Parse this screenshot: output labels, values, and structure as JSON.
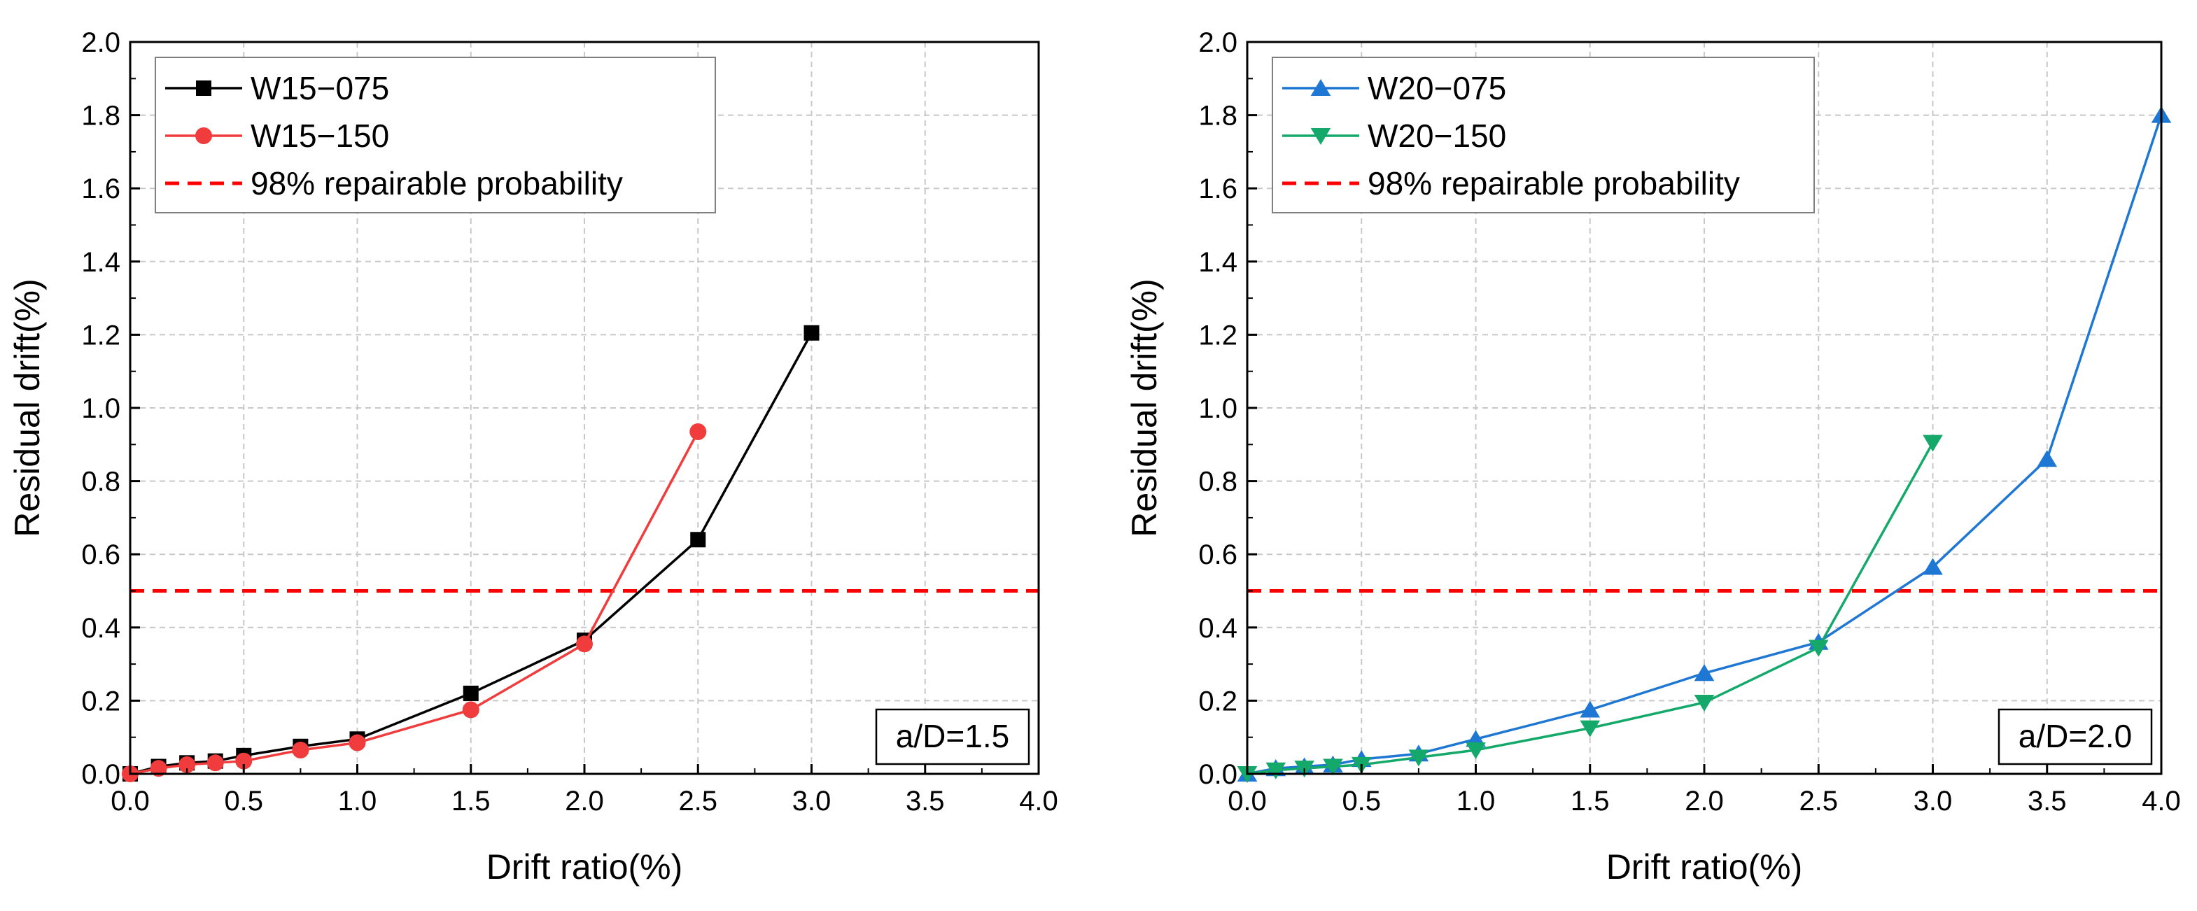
{
  "chart_data": [
    {
      "type": "line",
      "xlabel": "Drift ratio(%)",
      "ylabel": "Residual drift(%)",
      "xlim": [
        0,
        4
      ],
      "ylim": [
        0,
        2
      ],
      "xticks": [
        "0.0",
        "0.5",
        "1.0",
        "1.5",
        "2.0",
        "2.5",
        "3.0",
        "3.5",
        "4.0"
      ],
      "yticks": [
        "0.0",
        "0.2",
        "0.4",
        "0.6",
        "0.8",
        "1.0",
        "1.2",
        "1.4",
        "1.6",
        "1.8",
        "2.0"
      ],
      "grid": true,
      "legend_position": "top-left",
      "annotation": "a/D=1.5",
      "series": [
        {
          "name": "W15−075",
          "color": "#000000",
          "marker": "square",
          "x": [
            0,
            0.125,
            0.25,
            0.375,
            0.5,
            0.75,
            1.0,
            1.5,
            2.0,
            2.5,
            3.0
          ],
          "y": [
            0,
            0.02,
            0.03,
            0.035,
            0.05,
            0.075,
            0.095,
            0.22,
            0.365,
            0.64,
            1.205
          ]
        },
        {
          "name": "W15−150",
          "color": "#f03c3c",
          "marker": "circle",
          "x": [
            0,
            0.125,
            0.25,
            0.375,
            0.5,
            0.75,
            1.0,
            1.5,
            2.0,
            2.5
          ],
          "y": [
            0,
            0.015,
            0.025,
            0.03,
            0.035,
            0.065,
            0.085,
            0.175,
            0.355,
            0.935
          ]
        }
      ],
      "reference_line": {
        "name": "98% repairable probability",
        "y": 0.5,
        "color": "#ff0000",
        "style": "dashed"
      }
    },
    {
      "type": "line",
      "xlabel": "Drift ratio(%)",
      "ylabel": "Residual drift(%)",
      "xlim": [
        0,
        4
      ],
      "ylim": [
        0,
        2
      ],
      "xticks": [
        "0.0",
        "0.5",
        "1.0",
        "1.5",
        "2.0",
        "2.5",
        "3.0",
        "3.5",
        "4.0"
      ],
      "yticks": [
        "0.0",
        "0.2",
        "0.4",
        "0.6",
        "0.8",
        "1.0",
        "1.2",
        "1.4",
        "1.6",
        "1.8",
        "2.0"
      ],
      "grid": true,
      "legend_position": "top-left",
      "annotation": "a/D=2.0",
      "series": [
        {
          "name": "W20−075",
          "color": "#1f77d4",
          "marker": "triangle-up",
          "x": [
            0,
            0.125,
            0.25,
            0.375,
            0.5,
            0.75,
            1.0,
            1.5,
            2.0,
            2.5,
            3.0,
            3.5,
            4.0
          ],
          "y": [
            0,
            0.015,
            0.02,
            0.025,
            0.04,
            0.055,
            0.095,
            0.175,
            0.275,
            0.36,
            0.565,
            0.86,
            1.8
          ]
        },
        {
          "name": "W20−150",
          "color": "#14a86a",
          "marker": "triangle-down",
          "x": [
            0,
            0.125,
            0.25,
            0.375,
            0.5,
            0.75,
            1.0,
            1.5,
            2.0,
            2.5,
            3.0
          ],
          "y": [
            0,
            0.01,
            0.015,
            0.02,
            0.025,
            0.045,
            0.065,
            0.125,
            0.195,
            0.345,
            0.905
          ]
        }
      ],
      "reference_line": {
        "name": "98% repairable probability",
        "y": 0.5,
        "color": "#ff0000",
        "style": "dashed"
      }
    }
  ]
}
